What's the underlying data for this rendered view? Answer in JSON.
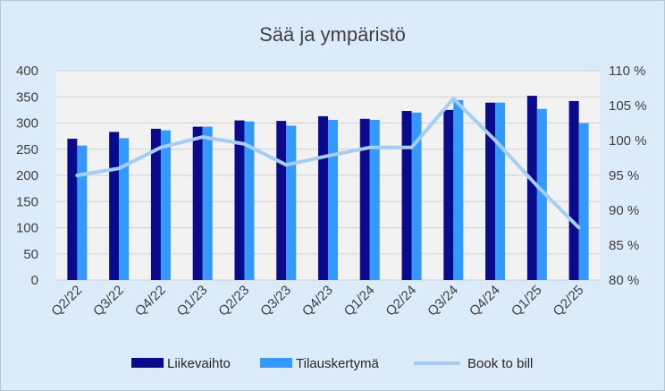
{
  "chart_data": {
    "type": "bar",
    "title": "Sää ja ympäristö",
    "categories": [
      "Q2/22",
      "Q3/22",
      "Q4/22",
      "Q1/23",
      "Q2/23",
      "Q3/23",
      "Q4/23",
      "Q1/24",
      "Q2/24",
      "Q3/24",
      "Q4/24",
      "Q1/25",
      "Q2/25"
    ],
    "series": [
      {
        "name": "Liikevaihto",
        "type": "bar",
        "axis": "left",
        "color": "#0a0a8c",
        "values": [
          270,
          283,
          289,
          293,
          305,
          304,
          313,
          308,
          323,
          325,
          339,
          352,
          342
        ]
      },
      {
        "name": "Tilauskertymä",
        "type": "bar",
        "axis": "left",
        "color": "#3399ff",
        "values": [
          257,
          271,
          286,
          293,
          303,
          295,
          306,
          306,
          320,
          344,
          339,
          327,
          300
        ]
      },
      {
        "name": "Book to bill",
        "type": "line",
        "axis": "right",
        "color": "#a6cdf2",
        "values": [
          95,
          96,
          99,
          100.5,
          99.5,
          96.5,
          97.8,
          99,
          99,
          106,
          100,
          93.5,
          87.5
        ]
      }
    ],
    "y_left": {
      "min": 0,
      "max": 400,
      "step": 50,
      "ticks": [
        "0",
        "50",
        "100",
        "150",
        "200",
        "250",
        "300",
        "350",
        "400"
      ]
    },
    "y_right": {
      "min": 80,
      "max": 110,
      "step": 5,
      "ticks": [
        "80 %",
        "85 %",
        "90 %",
        "95 %",
        "100 %",
        "105 %",
        "110 %"
      ]
    },
    "grid": true,
    "legend_position": "bottom",
    "colors": {
      "background": "#dcebfa",
      "plot_background": "#f2f2f2",
      "gridline": "#d0d0d0"
    }
  }
}
